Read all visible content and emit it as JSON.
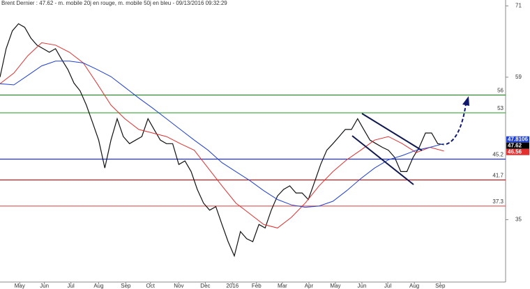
{
  "chart_data": {
    "type": "line",
    "title": "Brent Dernier : 47.62 - m. mobile 20j en rouge, m. mobile 50j en bleu - 09/13/2016 09:32:29",
    "xlim": [
      0,
      82
    ],
    "xticks": [
      {
        "value": 3.2,
        "label": "May"
      },
      {
        "value": 7.2,
        "label": "Jun"
      },
      {
        "value": 11.5,
        "label": "Jul"
      },
      {
        "value": 16,
        "label": "Aug"
      },
      {
        "value": 20.4,
        "label": "Sep"
      },
      {
        "value": 24.4,
        "label": "Oct"
      },
      {
        "value": 29,
        "label": "Nov"
      },
      {
        "value": 33.3,
        "label": "Dec"
      },
      {
        "value": 37.7,
        "label": "2016"
      },
      {
        "value": 41.6,
        "label": "Feb"
      },
      {
        "value": 45.8,
        "label": "Mar"
      },
      {
        "value": 50.1,
        "label": "Apr"
      },
      {
        "value": 54.4,
        "label": "May"
      },
      {
        "value": 58.7,
        "label": "Jun"
      },
      {
        "value": 62.9,
        "label": "Jul"
      },
      {
        "value": 67.2,
        "label": "Aug"
      },
      {
        "value": 71.4,
        "label": "Sep"
      }
    ],
    "ylim": [
      24.5,
      72
    ],
    "yticks": [
      71,
      59,
      35
    ],
    "levels": {
      "values": [
        56,
        53,
        45.2,
        41.7,
        37.3
      ],
      "colors": [
        "#1a8a1a",
        "#4caf4c",
        "#2030c0",
        "#c02020",
        "#e06060"
      ]
    },
    "series": [
      {
        "color": "#111111",
        "tag_color": "#000000",
        "x": [
          0,
          1,
          2,
          3,
          4,
          5,
          6,
          7,
          8,
          9,
          10,
          11,
          12,
          13,
          14,
          15,
          16,
          17,
          18,
          19,
          20,
          21,
          22,
          23,
          24,
          25,
          26,
          27,
          28,
          29,
          30,
          31,
          32,
          33,
          34,
          35,
          36,
          37,
          38,
          39,
          40,
          41,
          42,
          43,
          44,
          45,
          46,
          47,
          48,
          49,
          50,
          51,
          52,
          53,
          54,
          55,
          56,
          57,
          58,
          59,
          60,
          61,
          62,
          63,
          64,
          65,
          66,
          67,
          68,
          69,
          70,
          71,
          72
        ],
        "values": [
          59,
          63.8,
          66.8,
          68,
          67.4,
          65.6,
          64.4,
          63.8,
          63.2,
          63.8,
          62,
          60.3,
          58,
          56.7,
          54.3,
          51.4,
          48.4,
          43.7,
          48.4,
          52,
          49,
          47.8,
          48.4,
          49,
          52,
          50.2,
          48.4,
          47.8,
          47.8,
          44.3,
          44.9,
          43.1,
          40.1,
          37.8,
          36.6,
          37.2,
          34.2,
          31.3,
          28.9,
          33,
          31.8,
          31.3,
          34.2,
          33.6,
          36.6,
          39,
          40.1,
          40.7,
          39.5,
          39.5,
          38.4,
          41.3,
          44.3,
          46.7,
          47.8,
          49,
          50.2,
          50.2,
          52,
          50.2,
          48.4,
          47.8,
          47.2,
          46.7,
          45.5,
          43.1,
          43.1,
          45.5,
          47.2,
          49.6,
          49.6,
          47.8,
          47.62
        ]
      },
      {
        "color": "#e03030",
        "tag_color": "#e03030",
        "x": [
          0,
          2.25,
          4.5,
          6.75,
          9,
          11.25,
          13.5,
          15.75,
          18,
          20.25,
          22.5,
          24.75,
          27,
          29.25,
          31.5,
          33.75,
          36,
          38.25,
          40.5,
          42.75,
          45,
          47.25,
          49.5,
          51.75,
          54,
          56.25,
          58.5,
          60.75,
          63,
          65.25,
          67.5,
          69.75,
          72
        ],
        "values": [
          57.9,
          59.7,
          62.6,
          64.8,
          64.4,
          63.2,
          61.4,
          57.9,
          54.3,
          52,
          50.2,
          49.6,
          49,
          47.8,
          46.7,
          43.7,
          40.7,
          37.8,
          36,
          34.2,
          33.6,
          35.4,
          37.8,
          40.7,
          43.1,
          45.1,
          46.7,
          48.4,
          49,
          47.8,
          46.3,
          47.2,
          46.56
        ]
      },
      {
        "color": "#2040d0",
        "tag_color": "#2040d0",
        "x": [
          0,
          2.25,
          4.5,
          6.75,
          9,
          11.25,
          13.5,
          15.75,
          18,
          20.25,
          22.5,
          24.75,
          27,
          29.25,
          31.5,
          33.75,
          36,
          38.25,
          40.5,
          42.75,
          45,
          47.25,
          49.5,
          51.75,
          54,
          56.25,
          58.5,
          60.75,
          63,
          65.25,
          67.5,
          69.75,
          72
        ],
        "values": [
          57.9,
          57.7,
          59.3,
          60.9,
          61.7,
          61.7,
          61.4,
          60.3,
          59.1,
          57.3,
          55.5,
          53.8,
          52,
          50.2,
          48.4,
          46.7,
          44.6,
          43.1,
          41.6,
          39.9,
          38.4,
          37.5,
          37.1,
          37.3,
          38.1,
          39.9,
          41.9,
          43.7,
          45.1,
          45.8,
          46.7,
          47.2,
          47.8106
        ]
      }
    ]
  }
}
